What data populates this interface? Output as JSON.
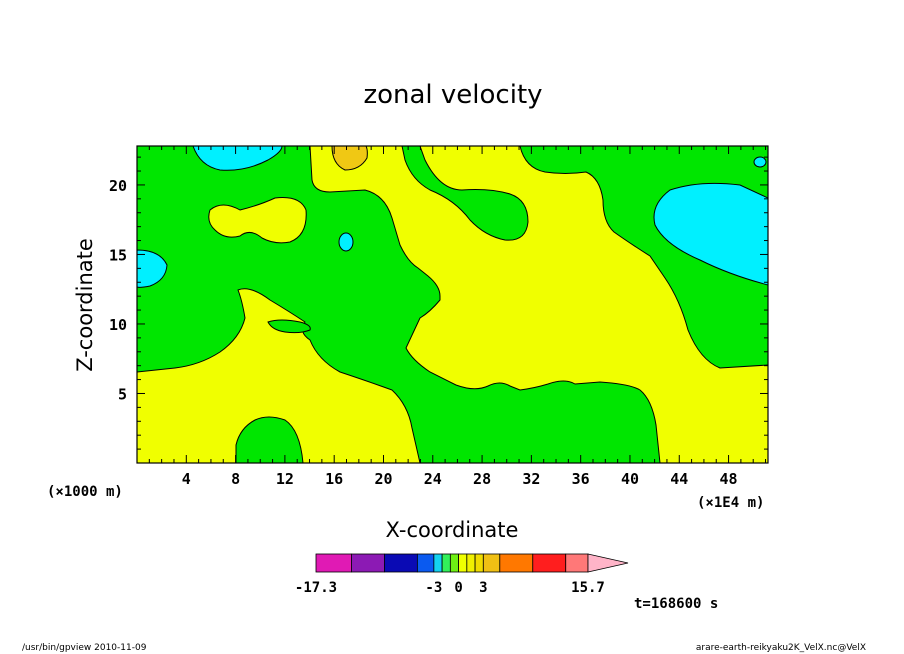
{
  "chart_data": {
    "type": "heatmap",
    "title": "zonal velocity",
    "xlabel": "X-coordinate",
    "ylabel": "Z-coordinate",
    "x_unit_left": "(×1000 m)",
    "x_unit_right": "(×1E4 m)",
    "xlim": [
      0,
      51.2
    ],
    "ylim": [
      0,
      22.8
    ],
    "x_ticks": [
      "4",
      "8",
      "12",
      "16",
      "20",
      "24",
      "28",
      "32",
      "36",
      "40",
      "44",
      "48"
    ],
    "y_ticks": [
      "5",
      "10",
      "15",
      "20"
    ],
    "legend": {
      "position": "bottom",
      "min_label": "-17.3",
      "labels": [
        "-3",
        "0",
        "3",
        "15.7"
      ],
      "levels": [
        -17.3,
        -13,
        -9,
        -5,
        -3,
        -2,
        -1,
        0,
        1,
        2,
        3,
        5,
        9,
        13,
        15.7
      ],
      "colors": [
        "#e01ab4",
        "#8c1ab4",
        "#0a0ab4",
        "#0a5af0",
        "#14d2f0",
        "#32f05a",
        "#6ef014",
        "#f0ff00",
        "#f0f000",
        "#f0dc00",
        "#f0c014",
        "#ff7800",
        "#ff1e1e",
        "#ff7878"
      ],
      "extend_color": "#ffb4c8"
    },
    "time_label": "t=168600 s",
    "colors": {
      "green": "#00e600",
      "yellow": "#f0ff00",
      "cyan": "#00f0ff",
      "orange": "#f0c814"
    }
  },
  "footer": {
    "left": "/usr/bin/gpview   2010-11-09",
    "right": "arare-earth-reikyaku2K_VelX.nc@VelX"
  }
}
